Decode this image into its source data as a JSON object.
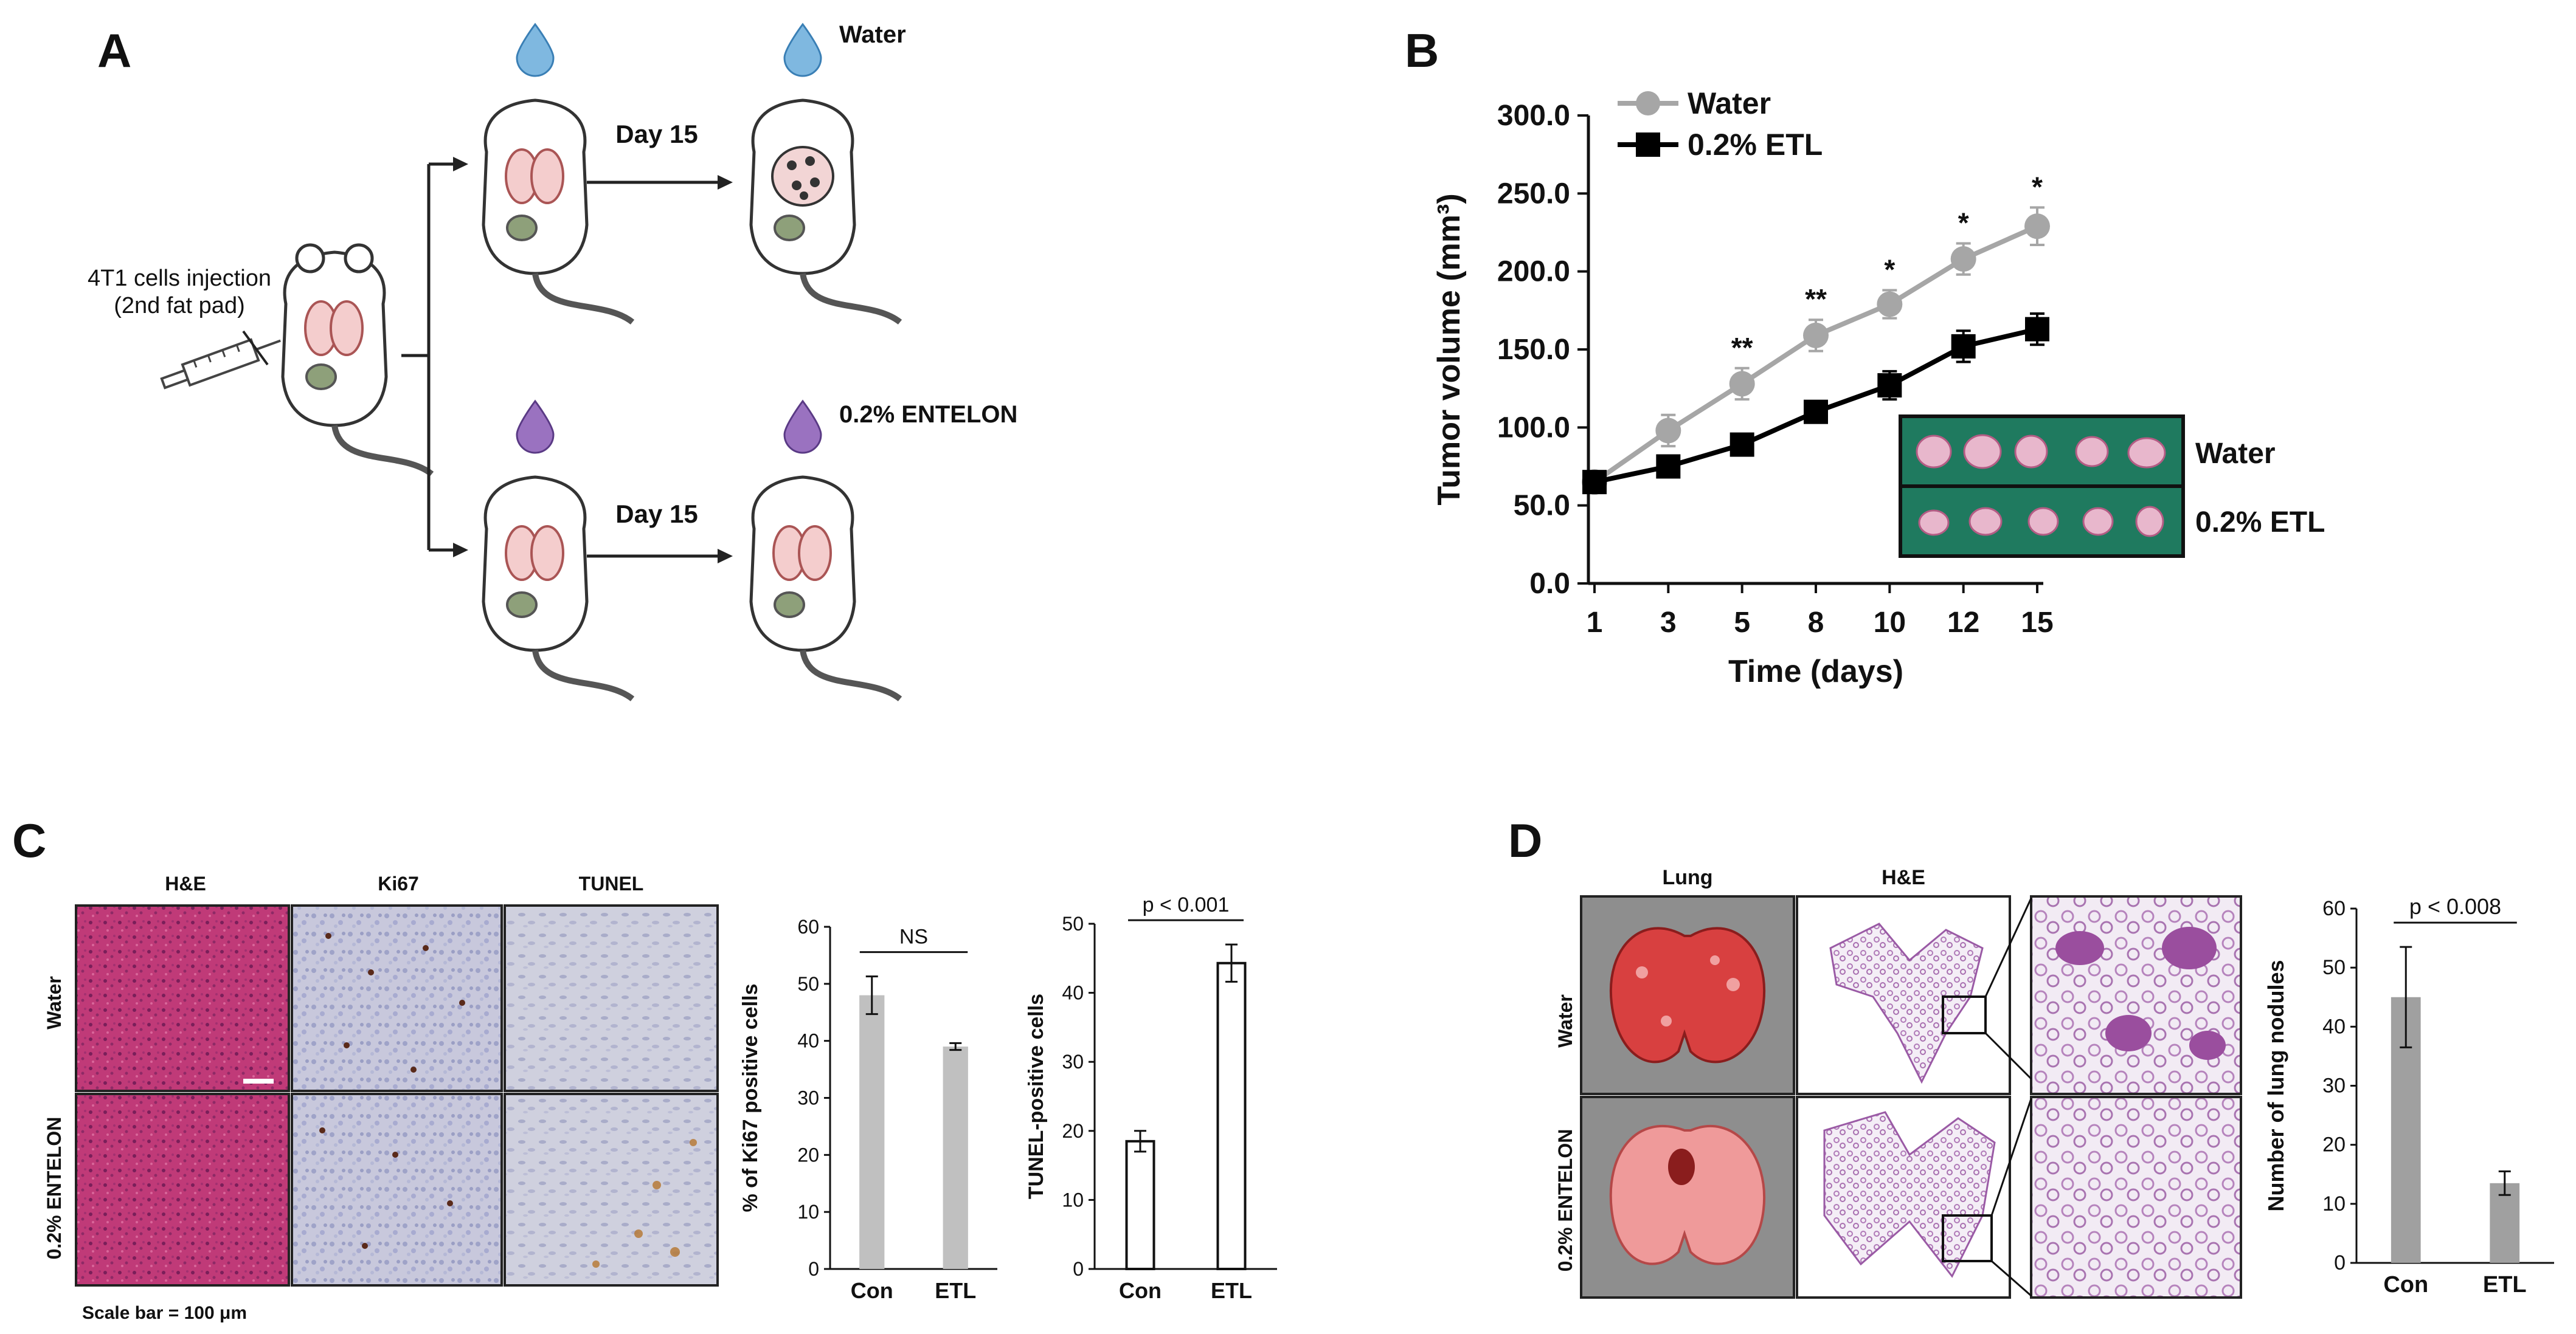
{
  "panels": {
    "A": {
      "letter": "A",
      "injection_line1": "4T1 cells injection",
      "injection_line2": "(2nd fat pad)",
      "day_label_top": "Day 15",
      "day_label_bottom": "Day 15",
      "group_top": "Water",
      "group_bottom": "0.2% ENTELON"
    },
    "B": {
      "letter": "B",
      "inset_labels": [
        "Water",
        "0.2% ETL"
      ]
    },
    "C": {
      "letter": "C",
      "column_headers": [
        "H&E",
        "Ki67",
        "TUNEL"
      ],
      "row_labels": [
        "Water",
        "0.2% ENTELON"
      ],
      "scale_bar": "Scale bar = 100 μm"
    },
    "D": {
      "letter": "D",
      "column_headers": [
        "Lung",
        "H&E"
      ],
      "row_labels": [
        "Water",
        "0.2% ENTELON"
      ]
    }
  },
  "chart_data": [
    {
      "id": "tumor_volume",
      "type": "line",
      "title": "",
      "xlabel": "Time (days)",
      "ylabel": "Tumor volume (mm³)",
      "categories": [
        "1",
        "3",
        "5",
        "8",
        "10",
        "12",
        "15"
      ],
      "ylim": [
        0,
        300
      ],
      "yticks": [
        "0.0",
        "50.0",
        "100.0",
        "150.0",
        "200.0",
        "250.0",
        "300.0"
      ],
      "series": [
        {
          "name": "Water",
          "color": "#a6a6a6",
          "marker": "circle",
          "values": [
            65,
            98,
            128,
            159,
            179,
            208,
            229
          ],
          "errors": [
            6,
            10,
            10,
            10,
            9,
            10,
            12
          ]
        },
        {
          "name": "0.2% ETL",
          "color": "#000000",
          "marker": "square",
          "values": [
            65,
            75,
            89,
            110,
            127,
            152,
            163
          ],
          "errors": [
            5,
            6,
            5,
            5,
            9,
            10,
            10
          ]
        }
      ],
      "significance": [
        "",
        "",
        "**",
        "**",
        "*",
        "*",
        "*"
      ]
    },
    {
      "id": "ki67",
      "type": "bar",
      "title": "",
      "ylabel": "% of Ki67 positive cells",
      "categories": [
        "Con",
        "ETL"
      ],
      "values": [
        48,
        39
      ],
      "errors": [
        3.3,
        0.6
      ],
      "ylim": [
        0,
        60
      ],
      "yticks": [
        "0",
        "10",
        "20",
        "30",
        "40",
        "50",
        "60"
      ],
      "bar_color": "#c0c0c0",
      "annotation": "NS"
    },
    {
      "id": "tunel",
      "type": "bar",
      "title": "",
      "ylabel": "TUNEL-positive cells",
      "categories": [
        "Con",
        "ETL"
      ],
      "values": [
        18.5,
        44.3
      ],
      "errors": [
        1.5,
        2.7
      ],
      "ylim": [
        0,
        50
      ],
      "yticks": [
        "0",
        "10",
        "20",
        "30",
        "40",
        "50"
      ],
      "bar_color": "#ffffff",
      "annotation": "p < 0.001"
    },
    {
      "id": "lung_nodules",
      "type": "bar",
      "title": "",
      "ylabel": "Number of lung nodules",
      "categories": [
        "Con",
        "ETL"
      ],
      "values": [
        45,
        13.5
      ],
      "errors": [
        8.5,
        2
      ],
      "ylim": [
        0,
        60
      ],
      "yticks": [
        "0",
        "10",
        "20",
        "30",
        "40",
        "50",
        "60"
      ],
      "bar_color": "#a0a0a0",
      "annotation": "p < 0.008"
    }
  ]
}
